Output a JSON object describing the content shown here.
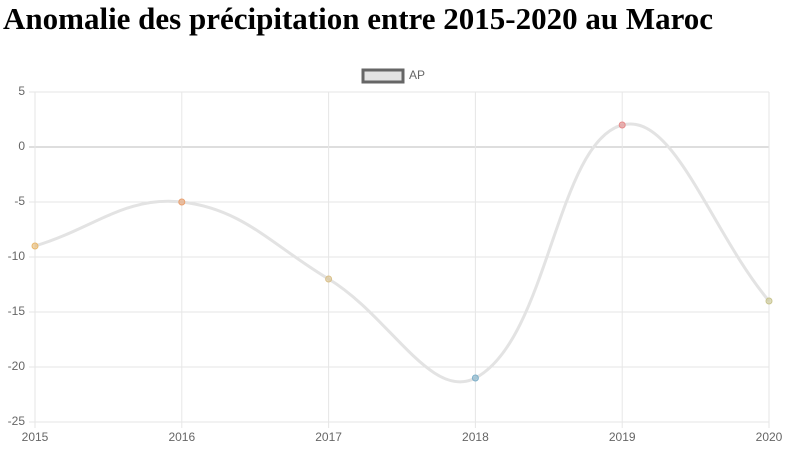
{
  "chart_data": {
    "type": "line",
    "title": "Anomalie des précipitation entre 2015-2020 au Maroc",
    "categories": [
      "2015",
      "2016",
      "2017",
      "2018",
      "2019",
      "2020"
    ],
    "series": [
      {
        "name": "AP",
        "color": "#e3e3e3",
        "values": [
          -9,
          -5,
          -12,
          -21,
          2,
          -14
        ],
        "point_colors": [
          "#e8b86d",
          "#e8a070",
          "#d9c08a",
          "#7fb0c9",
          "#e58a8a",
          "#c8c48f"
        ]
      }
    ],
    "ylim": [
      -25,
      5
    ],
    "yticks": [
      -25,
      -20,
      -15,
      -10,
      -5,
      0,
      5
    ],
    "grid": true
  }
}
